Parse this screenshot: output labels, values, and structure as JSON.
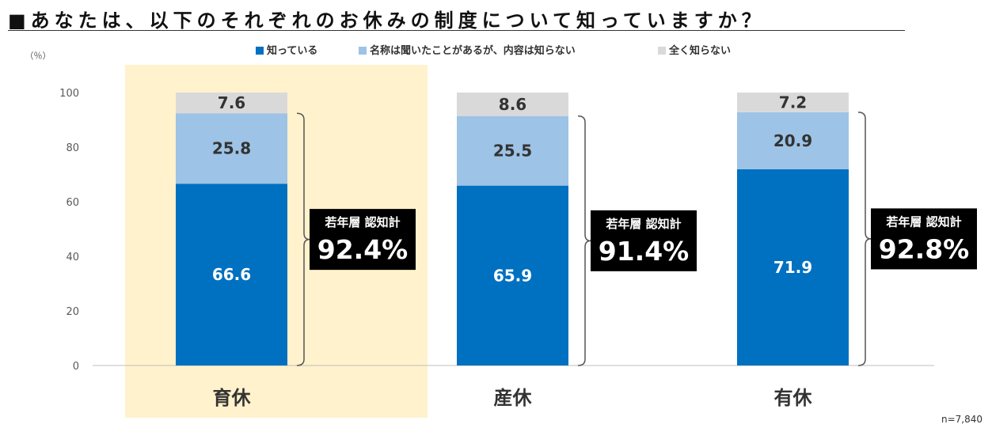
{
  "chart_data": {
    "type": "bar",
    "stacked": true,
    "title": "■あなたは、以下のそれぞれのお休みの制度について知っていますか？",
    "ylabel": "（％）",
    "ylim": [
      0,
      100
    ],
    "yticks": [
      0,
      20,
      40,
      60,
      80,
      100
    ],
    "categories": [
      "育休",
      "産休",
      "有休"
    ],
    "highlight_category": "育休",
    "series": [
      {
        "name": "知っている",
        "color": "#0070c0",
        "values": [
          66.6,
          65.9,
          71.9
        ],
        "labels": [
          "66.6",
          "65.9",
          "71.9"
        ]
      },
      {
        "name": "名称は聞いたことがあるが、内容は知らない",
        "color": "#9dc3e6",
        "values": [
          25.8,
          25.5,
          20.9
        ],
        "labels": [
          "25.8",
          "25.5",
          "20.9"
        ]
      },
      {
        "name": "全く知らない",
        "color": "#d9d9d9",
        "values": [
          7.6,
          8.6,
          7.2
        ],
        "labels": [
          "7.6",
          "8.6",
          "7.2"
        ]
      }
    ],
    "annotations": [
      {
        "category": "育休",
        "label": "若年層 認知計",
        "value": "92.4%"
      },
      {
        "category": "産休",
        "label": "若年層 認知計",
        "value": "91.4%"
      },
      {
        "category": "有休",
        "label": "若年層 認知計",
        "value": "92.8%"
      }
    ],
    "note": "n=7,840",
    "legend_position": "top"
  },
  "colors": {
    "highlight_bg": "#fff2cc",
    "annotation_bg": "#000000",
    "axis": "#bfbfbf"
  }
}
